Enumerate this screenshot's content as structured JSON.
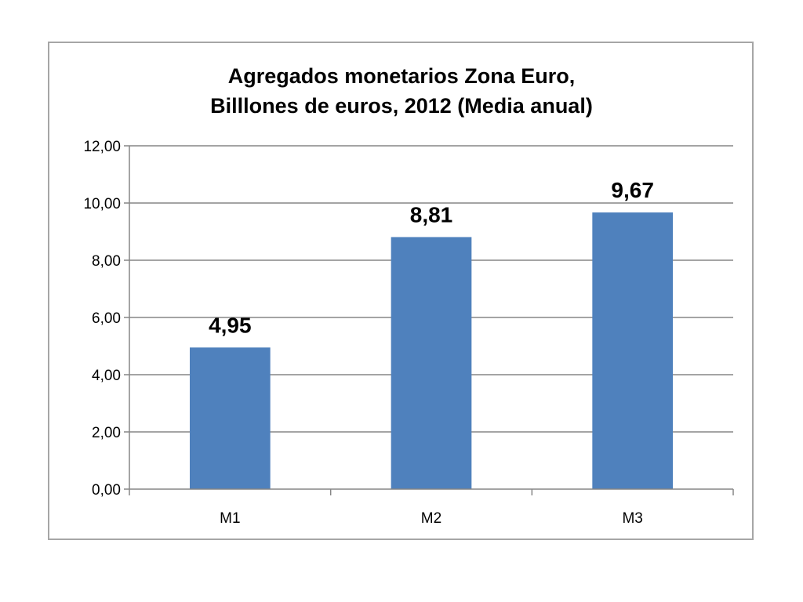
{
  "chart_data": {
    "type": "bar",
    "title_lines": [
      "Agregados monetarios Zona Euro,",
      "Billlones de euros, 2012 (Media anual)"
    ],
    "categories": [
      "M1",
      "M2",
      "M3"
    ],
    "values": [
      4.95,
      8.81,
      9.67
    ],
    "value_labels": [
      "4,95",
      "8,81",
      "9,67"
    ],
    "y_ticks": [
      "0,00",
      "2,00",
      "4,00",
      "6,00",
      "8,00",
      "10,00",
      "12,00"
    ],
    "ylim": [
      0,
      12
    ],
    "grid": true,
    "legend": "none",
    "xlabel": "",
    "ylabel": "",
    "bar_color": "#4f81bd",
    "grid_color": "#868686"
  }
}
